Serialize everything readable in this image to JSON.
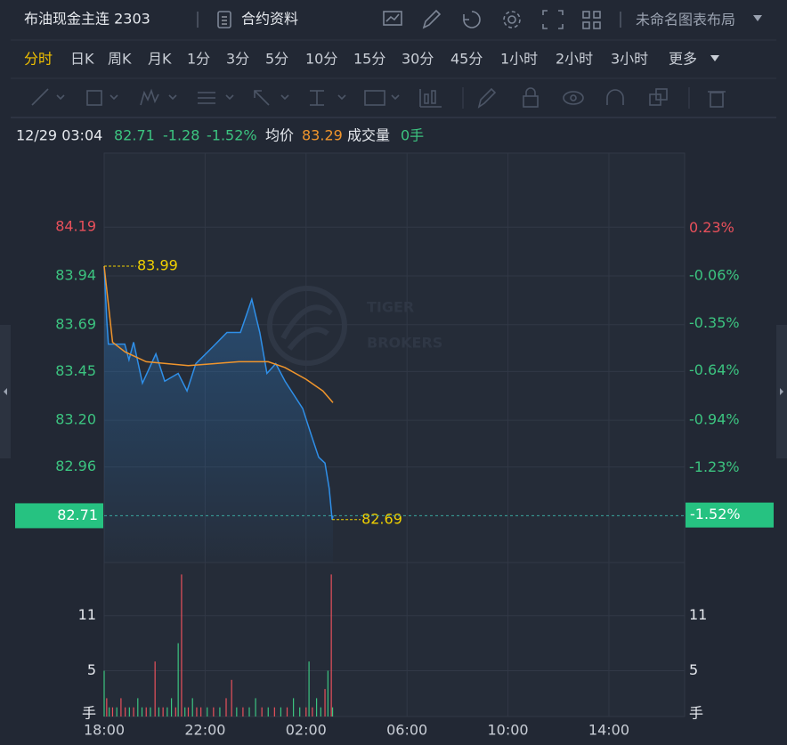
{
  "header": {
    "title": "布油现金主连 2303",
    "contract_info": "合约资料",
    "layout_name": "未命名图表布局"
  },
  "tabs": [
    "分时",
    "日K",
    "周K",
    "月K",
    "1分",
    "3分",
    "5分",
    "10分",
    "15分",
    "30分",
    "45分",
    "1小时",
    "2小时",
    "3小时",
    "更多"
  ],
  "active_tab": 0,
  "info": {
    "datetime": "12/29 03:04",
    "price": "82.71",
    "change": "-1.28",
    "change_pct": "-1.52%",
    "avg_label": "均价",
    "avg": "83.29",
    "volume_label": "成交量",
    "volume": "0手"
  },
  "chart_data": [
    {
      "type": "line",
      "watermark": [
        "TIGER",
        "BROKERS"
      ],
      "xlim": [
        0,
        1380
      ],
      "xticks": [
        {
          "value": 0,
          "label": "18:00"
        },
        {
          "value": 240,
          "label": "22:00"
        },
        {
          "value": 480,
          "label": "02:00"
        },
        {
          "value": 720,
          "label": "06:00"
        },
        {
          "value": 960,
          "label": "10:00"
        },
        {
          "value": 1200,
          "label": "14:00"
        }
      ],
      "ylim": [
        82.47,
        84.57
      ],
      "yticks": [
        84.19,
        83.94,
        83.69,
        83.45,
        {
          "value": 83.2,
          "label": "83.20"
        },
        82.96
      ],
      "y2lim": [
        -1.81,
        0.69
      ],
      "y2ticks": [
        {
          "value": 0.23,
          "label": "0.23%"
        },
        {
          "value": -0.06,
          "label": "-0.06%"
        },
        {
          "value": -0.35,
          "label": "-0.35%"
        },
        {
          "value": -0.64,
          "label": "-0.64%"
        },
        {
          "value": -0.94,
          "label": "-0.94%"
        },
        {
          "value": -1.23,
          "label": "-1.23%"
        }
      ],
      "last": {
        "value": 82.71,
        "pct": {
          "value": -1.52,
          "label": "-1.52%"
        }
      },
      "high": {
        "x": 0,
        "value": 83.99
      },
      "low": {
        "x": 542,
        "value": 82.69
      },
      "grid": true,
      "series": [
        {
          "color": "#2f8fe8",
          "x": [
            0,
            6,
            10,
            49,
            59,
            70,
            91,
            123,
            144,
            176,
            197,
            218,
            260,
            292,
            324,
            351,
            370,
            387,
            408,
            430,
            451,
            472,
            493,
            510,
            525,
            535,
            542,
            544
          ],
          "values": [
            83.99,
            83.72,
            83.59,
            83.59,
            83.51,
            83.6,
            83.39,
            83.54,
            83.4,
            83.44,
            83.35,
            83.49,
            83.58,
            83.65,
            83.65,
            83.82,
            83.65,
            83.44,
            83.49,
            83.4,
            83.33,
            83.26,
            83.12,
            83.01,
            82.98,
            82.85,
            82.69,
            82.71
          ]
        },
        {
          "name": "均价",
          "color": "#f0952c",
          "x": [
            0,
            20,
            50,
            100,
            200,
            260,
            320,
            390,
            430,
            480,
            520,
            544
          ],
          "values": [
            83.99,
            83.6,
            83.55,
            83.5,
            83.48,
            83.49,
            83.5,
            83.5,
            83.47,
            83.41,
            83.35,
            83.29
          ]
        }
      ]
    },
    {
      "type": "bar",
      "name": "成交量",
      "xlim": [
        0,
        1380
      ],
      "ylim": [
        0,
        16.8
      ],
      "yticks": [
        {
          "value": 0,
          "label": "手"
        },
        11,
        5
      ],
      "x": [
        0,
        6,
        12,
        20,
        30,
        40,
        50,
        60,
        70,
        80,
        90,
        100,
        110,
        121,
        130,
        140,
        150,
        160,
        170,
        176,
        184,
        192,
        200,
        210,
        220,
        230,
        245,
        260,
        275,
        290,
        303,
        315,
        330,
        345,
        360,
        375,
        390,
        405,
        420,
        435,
        450,
        465,
        480,
        487,
        495,
        505,
        515,
        525,
        532,
        540,
        543
      ],
      "values": [
        5,
        2,
        1,
        1,
        1,
        2,
        1,
        1,
        1,
        2,
        1,
        1,
        1,
        6,
        1,
        1,
        1,
        2,
        1,
        8,
        15.5,
        1,
        1,
        2,
        1,
        1,
        1,
        1,
        1,
        2,
        4,
        1,
        1,
        1,
        2,
        1,
        1,
        1,
        1,
        1,
        2,
        1,
        1,
        6,
        1,
        2,
        1,
        3,
        5,
        15.5,
        1
      ],
      "colors": [
        "#3cc480",
        "#e8505b",
        "#3cc480",
        "#e8505b",
        "#3cc480",
        "#e8505b",
        "#e8505b",
        "#3cc480",
        "#e8505b",
        "#3cc480",
        "#3cc480",
        "#e8505b",
        "#3cc480",
        "#e8505b",
        "#3cc480",
        "#e8505b",
        "#3cc480",
        "#3cc480",
        "#e8505b",
        "#3cc480",
        "#e8505b",
        "#3cc480",
        "#e8505b",
        "#3cc480",
        "#e8505b",
        "#e8505b",
        "#3cc480",
        "#e8505b",
        "#3cc480",
        "#e8505b",
        "#e8505b",
        "#3cc480",
        "#e8505b",
        "#3cc480",
        "#3cc480",
        "#e8505b",
        "#3cc480",
        "#e8505b",
        "#3cc480",
        "#e8505b",
        "#3cc480",
        "#3cc480",
        "#e8505b",
        "#3cc480",
        "#e8505b",
        "#3cc480",
        "#3cc480",
        "#e8505b",
        "#3cc480",
        "#e8505b",
        "#3cc480"
      ]
    }
  ]
}
